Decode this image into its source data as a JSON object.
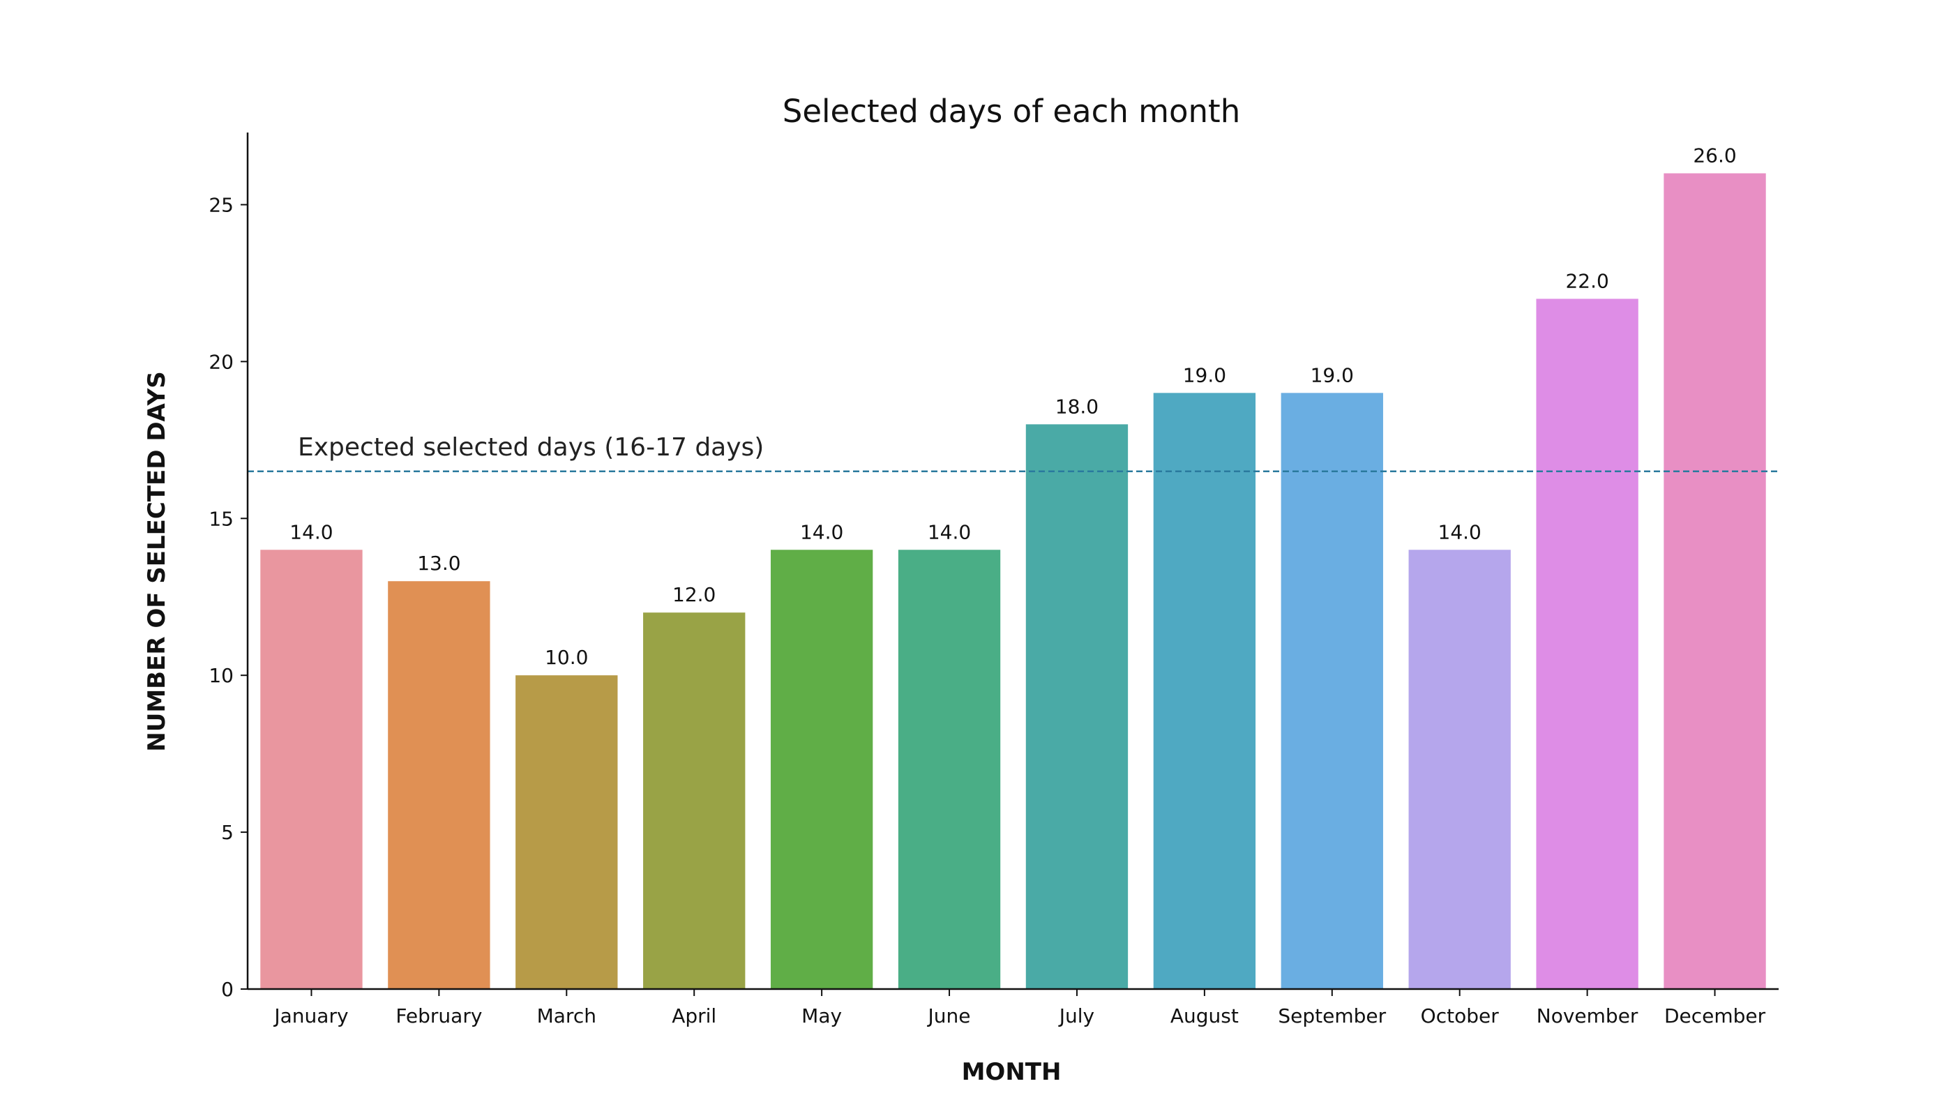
{
  "chart_data": {
    "type": "bar",
    "title": "Selected days of each month",
    "xlabel": "MONTH",
    "ylabel": "NUMBER OF SELECTED DAYS",
    "categories": [
      "January",
      "February",
      "March",
      "April",
      "May",
      "June",
      "July",
      "August",
      "September",
      "October",
      "November",
      "December"
    ],
    "values": [
      14.0,
      13.0,
      10.0,
      12.0,
      14.0,
      14.0,
      18.0,
      19.0,
      19.0,
      14.0,
      22.0,
      26.0
    ],
    "data_labels": [
      "14.0",
      "13.0",
      "10.0",
      "12.0",
      "14.0",
      "14.0",
      "18.0",
      "19.0",
      "19.0",
      "14.0",
      "22.0",
      "26.0"
    ],
    "colors": [
      "#e9969f",
      "#e09054",
      "#b79b48",
      "#99a346",
      "#60ae47",
      "#4aae86",
      "#4aaaa6",
      "#4fa9c2",
      "#6aaee2",
      "#b5a6ec",
      "#de8de6",
      "#e88fc4"
    ],
    "yticks": [
      0,
      5,
      10,
      15,
      20,
      25
    ],
    "ylim": [
      0,
      27.3
    ],
    "reference_line": {
      "value": 16.5,
      "label": "Expected selected days (16-17 days)",
      "color": "#2a7a9e",
      "style": "dashed"
    },
    "grid": false,
    "legend": "none"
  }
}
